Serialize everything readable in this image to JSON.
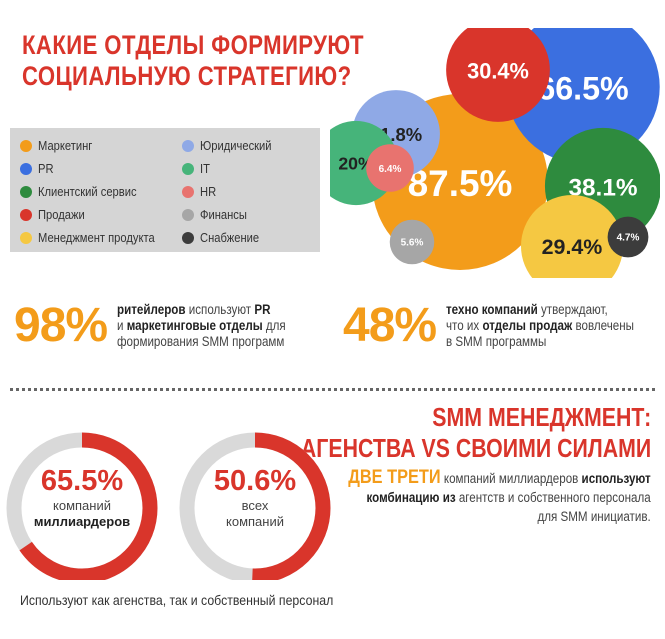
{
  "header": {
    "title_line1": "КАКИЕ ОТДЕЛЫ ФОРМИРУЮТ",
    "title_line2": "СОЦИАЛЬНУЮ СТРАТЕГИЮ?"
  },
  "chart_data": {
    "type": "bubble",
    "title": "КАКИЕ ОТДЕЛЫ ФОРМИРУЮТ СОЦИАЛЬНУЮ СТРАТЕГИЮ?",
    "legend_placement": "left",
    "series": [
      {
        "name": "Маркетинг",
        "value": 87.5,
        "label": "87.5%",
        "color": "#f39c1a"
      },
      {
        "name": "PR",
        "value": 66.5,
        "label": "66.5%",
        "color": "#3b6fe0"
      },
      {
        "name": "Клиентский сервис",
        "value": 38.1,
        "label": "38.1%",
        "color": "#2e8b3e"
      },
      {
        "name": "Продажи",
        "value": 30.4,
        "label": "30.4%",
        "color": "#d9352b"
      },
      {
        "name": "Менеджмент продукта",
        "value": 29.4,
        "label": "29.4%",
        "color": "#f5c842"
      },
      {
        "name": "Юридический",
        "value": 21.8,
        "label": "21.8%",
        "color": "#8fa9e6"
      },
      {
        "name": "IT",
        "value": 20.0,
        "label": "20%",
        "color": "#46b47a"
      },
      {
        "name": "HR",
        "value": 6.4,
        "label": "6.4%",
        "color": "#e8736f"
      },
      {
        "name": "Финансы",
        "value": 5.6,
        "label": "5.6%",
        "color": "#a6a6a6"
      },
      {
        "name": "Снабжение",
        "value": 4.7,
        "label": "4.7%",
        "color": "#3c3c3c"
      }
    ]
  },
  "legend": {
    "left": [
      {
        "label": "Маркетинг",
        "color": "#f39c1a"
      },
      {
        "label": "PR",
        "color": "#3b6fe0"
      },
      {
        "label": "Клиентский сервис",
        "color": "#2e8b3e"
      },
      {
        "label": "Продажи",
        "color": "#d9352b"
      },
      {
        "label": "Менеджмент продукта",
        "color": "#f5c842"
      }
    ],
    "right": [
      {
        "label": "Юридический",
        "color": "#8fa9e6"
      },
      {
        "label": "IT",
        "color": "#46b47a"
      },
      {
        "label": "HR",
        "color": "#e8736f"
      },
      {
        "label": "Финансы",
        "color": "#a6a6a6"
      },
      {
        "label": "Снабжение",
        "color": "#3c3c3c"
      }
    ]
  },
  "stat_retail": {
    "value": "98%",
    "b1": "ритейлеров",
    "t1": " используют ",
    "b2": "PR",
    "t2": "и ",
    "b3": "маркетинговые отделы",
    "t3": " для",
    "t4": "формирования SMM программ"
  },
  "stat_tech": {
    "value": "48%",
    "b1": "техно компаний",
    "t1": " утверждают,",
    "t2": "что их ",
    "b2": "отделы продаж",
    "t3": " вовлечены",
    "t4": "в SMM программы"
  },
  "section2": {
    "title_line1": "SMM МЕНЕДЖМЕНТ:",
    "title_line2": "АГЕНСТВА VS СВОИМИ СИЛАМИ"
  },
  "rings": [
    {
      "value": 65.5,
      "pct": "65.5%",
      "sub1": "компаний",
      "sub2": "миллиардеров",
      "color": "#d9352b",
      "track": "#d9d9d9"
    },
    {
      "value": 50.6,
      "pct": "50.6%",
      "sub1": "всех",
      "sub2": "компаний",
      "color": "#d9352b",
      "track": "#d9d9d9"
    }
  ],
  "two_thirds": {
    "highlight": "ДВЕ ТРЕТИ",
    "t1": " компаний миллиардеров ",
    "b1": "используют",
    "b2": "комбинацию из",
    "t2": "  агентств и собственного персонала",
    "t3": "для SMM инициатив."
  },
  "footer": {
    "text": "Используют как агенства, так и собственный персонал"
  }
}
